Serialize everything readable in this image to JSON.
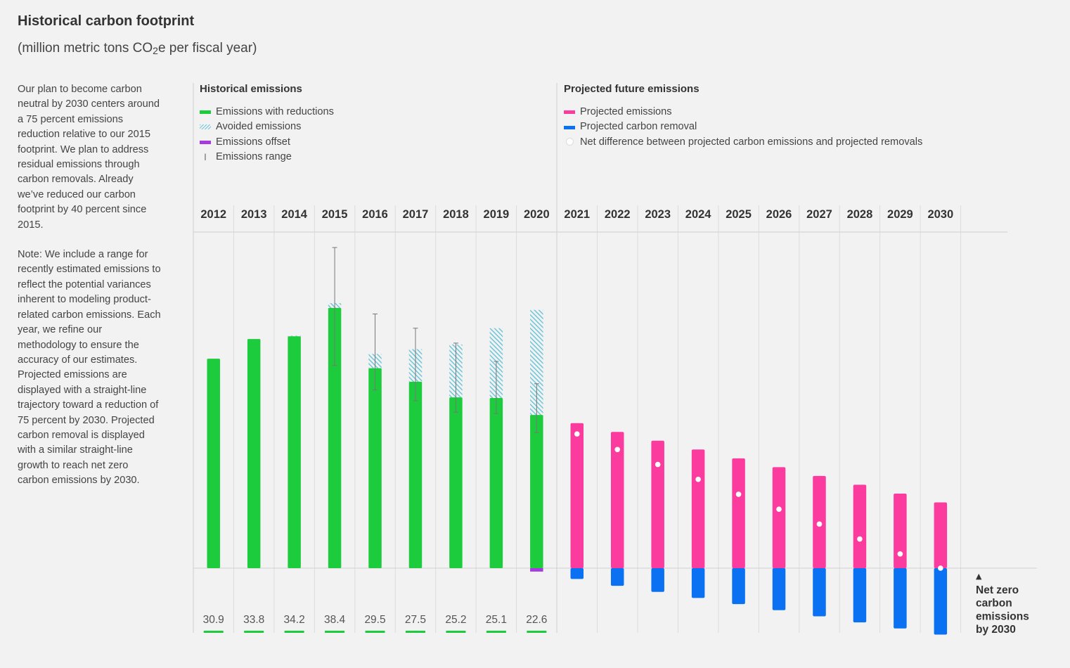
{
  "header": {
    "title": "Historical carbon footprint",
    "subtitle_pre": "(million metric tons CO",
    "subtitle_sub": "2",
    "subtitle_post": "e per fiscal year)"
  },
  "sidebar": {
    "paragraph1": "Our plan to become carbon neutral by 2030 centers around a 75 percent emissions reduction relative to our 2015 footprint. We plan to address residual emissions through carbon removals. Already we’ve reduced our carbon footprint by 40 percent since 2015.",
    "paragraph2": "Note: We include a range for recently estimated emissions to reflect the potential variances inherent to modeling product-related carbon emissions. Each year, we refine our methodology to ensure the accuracy of our estimates. Projected emissions are displayed with a straight-line trajectory toward a reduction of 75 percent by 2030. Projected carbon removal is displayed with a similar straight-line growth to reach net zero carbon emissions by 2030."
  },
  "legend": {
    "historical_heading": "Historical emissions",
    "historical_items": [
      "Emissions with reductions",
      "Avoided emissions",
      "Emissions offset",
      "Emissions range"
    ],
    "projected_heading": "Projected future emissions",
    "projected_items": [
      "Projected emissions",
      "Projected carbon removal",
      "Net difference between projected carbon emissions and projected removals"
    ],
    "range_glyph": "I"
  },
  "colors": {
    "emissions": "#1dcc3c",
    "avoided": "#6ec6d8",
    "offset": "#a43ae0",
    "projected": "#fb3b9e",
    "removal": "#0a72f2",
    "range": "#777777",
    "grid": "#cfcfcf"
  },
  "chart_data": {
    "type": "bar",
    "title": "Historical carbon footprint",
    "ylabel": "million metric tons CO2e per fiscal year",
    "ylim": [
      -4,
      40
    ],
    "categories": [
      "2012",
      "2013",
      "2014",
      "2015",
      "2016",
      "2017",
      "2018",
      "2019",
      "2020",
      "2021",
      "2022",
      "2023",
      "2024",
      "2025",
      "2026",
      "2027",
      "2028",
      "2029",
      "2030"
    ],
    "historical": {
      "years": [
        "2012",
        "2013",
        "2014",
        "2015",
        "2016",
        "2017",
        "2018",
        "2019",
        "2020"
      ],
      "emissions_with_reductions": [
        30.9,
        33.8,
        34.2,
        38.4,
        29.5,
        27.5,
        25.2,
        25.1,
        22.6
      ],
      "value_labels": [
        "30.9",
        "33.8",
        "34.2",
        "38.4",
        "29.5",
        "27.5",
        "25.2",
        "25.1",
        "22.6"
      ],
      "avoided_top": [
        30.9,
        33.8,
        34.3,
        39.1,
        31.6,
        32.3,
        33.0,
        35.4,
        38.1
      ],
      "offset": [
        0,
        0,
        0,
        0,
        0,
        0,
        0,
        0,
        0.4
      ],
      "range_low": [
        null,
        null,
        null,
        29.9,
        26.3,
        24.7,
        23.0,
        22.8,
        20.0
      ],
      "range_high": [
        null,
        null,
        null,
        47.3,
        37.5,
        35.4,
        33.2,
        30.5,
        27.2
      ]
    },
    "projected": {
      "years": [
        "2021",
        "2022",
        "2023",
        "2024",
        "2025",
        "2026",
        "2027",
        "2028",
        "2029",
        "2030"
      ],
      "projected_emissions": [
        21.4,
        20.1,
        18.8,
        17.5,
        16.2,
        14.9,
        13.6,
        12.3,
        11.0,
        9.7
      ],
      "projected_removal": [
        -1.6,
        -2.6,
        -3.5,
        -4.4,
        -5.3,
        -6.2,
        -7.1,
        -8.0,
        -8.9,
        -9.8
      ],
      "net_difference": [
        19.8,
        17.5,
        15.3,
        13.1,
        10.9,
        8.7,
        6.5,
        4.3,
        2.1,
        0.0
      ]
    },
    "annotation": [
      "▲",
      "Net zero",
      "carbon",
      "emissions",
      "by 2030"
    ]
  }
}
